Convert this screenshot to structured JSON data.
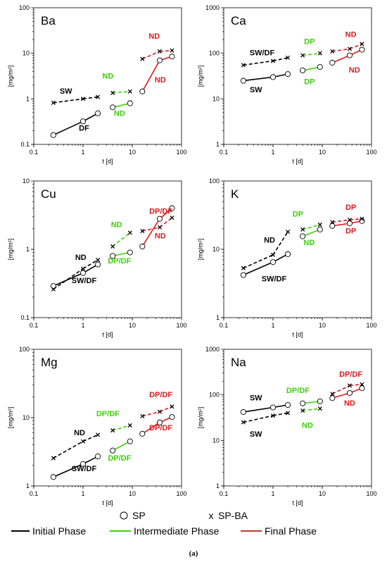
{
  "figure": {
    "caption": "(a)"
  },
  "legend": {
    "sp_label": "SP",
    "spba_label": "SP-BA",
    "initial_label": "Initial Phase",
    "intermediate_label": "Intermediate Phase",
    "final_label": "Final Phase"
  },
  "colors": {
    "initial": "#000000",
    "intermediate": "#3ecf0c",
    "final": "#e0191b",
    "sp_marker_fill": "#ffffff"
  },
  "chart_data": [
    {
      "type": "line",
      "element": "Ba",
      "xscale": "log",
      "yscale": "log",
      "xlabel": "t [d]",
      "ylabel": "[mg/m²]",
      "xlim": [
        0.1,
        100
      ],
      "ylim": [
        0.1,
        100
      ],
      "x_ticks": [
        "0.1",
        "1",
        "10",
        "100"
      ],
      "y_ticks": [
        "0.1",
        "1",
        "10",
        "100"
      ],
      "x": [
        0.25,
        1,
        2,
        4,
        9,
        16,
        36,
        64
      ],
      "series": [
        {
          "name": "SP",
          "values": [
            0.16,
            0.32,
            0.48,
            0.65,
            0.8,
            1.45,
            7,
            8.5
          ],
          "phases": [
            0,
            0,
            0,
            1,
            1,
            2,
            2,
            2
          ]
        },
        {
          "name": "SP-BA",
          "values": [
            0.82,
            1.0,
            1.1,
            1.35,
            1.45,
            7.5,
            11,
            11.5
          ],
          "phases": [
            0,
            0,
            0,
            1,
            1,
            2,
            2,
            2
          ]
        }
      ],
      "annotations": [
        {
          "text": "SW",
          "x": 0.45,
          "y": 1.3,
          "phase": 0
        },
        {
          "text": "DF",
          "x": 1.05,
          "y": 0.2,
          "phase": 0
        },
        {
          "text": "ND",
          "x": 3.2,
          "y": 2.8,
          "phase": 1
        },
        {
          "text": "ND",
          "x": 5.5,
          "y": 0.42,
          "phase": 1
        },
        {
          "text": "ND",
          "x": 28,
          "y": 21,
          "phase": 2
        },
        {
          "text": "ND",
          "x": 37,
          "y": 2.3,
          "phase": 2
        }
      ]
    },
    {
      "type": "line",
      "element": "Ca",
      "xscale": "log",
      "yscale": "log",
      "xlabel": "t [d]",
      "ylabel": "[mg/m²]",
      "xlim": [
        0.1,
        100
      ],
      "ylim": [
        1,
        1000
      ],
      "x_ticks": [
        "0.1",
        "1",
        "10",
        "100"
      ],
      "y_ticks": [
        "1",
        "10",
        "100",
        "1000"
      ],
      "x": [
        0.25,
        1,
        2,
        4,
        9,
        16,
        36,
        64
      ],
      "series": [
        {
          "name": "SP",
          "values": [
            25,
            30,
            35,
            42,
            50,
            62,
            90,
            120
          ],
          "phases": [
            0,
            0,
            0,
            1,
            1,
            2,
            2,
            2
          ]
        },
        {
          "name": "SP-BA",
          "values": [
            55,
            68,
            80,
            90,
            100,
            110,
            125,
            160
          ],
          "phases": [
            0,
            0,
            0,
            1,
            1,
            2,
            2,
            2
          ]
        }
      ],
      "annotations": [
        {
          "text": "SW/DF",
          "x": 0.6,
          "y": 90,
          "phase": 0
        },
        {
          "text": "SW",
          "x": 0.45,
          "y": 14,
          "phase": 0
        },
        {
          "text": "DP",
          "x": 5.5,
          "y": 160,
          "phase": 1
        },
        {
          "text": "DP",
          "x": 5.5,
          "y": 21,
          "phase": 1
        },
        {
          "text": "ND",
          "x": 38,
          "y": 230,
          "phase": 2
        },
        {
          "text": "ND",
          "x": 45,
          "y": 38,
          "phase": 2
        }
      ]
    },
    {
      "type": "line",
      "element": "Cu",
      "xscale": "log",
      "yscale": "log",
      "xlabel": "t [d]",
      "ylabel": "[mg/m²]",
      "xlim": [
        0.1,
        100
      ],
      "ylim": [
        0.1,
        10
      ],
      "x_ticks": [
        "0.1",
        "1",
        "10",
        "100"
      ],
      "y_ticks": [
        "0.1",
        "1",
        "10"
      ],
      "x": [
        0.25,
        1,
        2,
        4,
        9,
        16,
        36,
        64
      ],
      "series": [
        {
          "name": "SP",
          "values": [
            0.29,
            0.45,
            0.6,
            0.8,
            0.9,
            1.1,
            2.8,
            4.0
          ],
          "phases": [
            0,
            0,
            0,
            1,
            1,
            2,
            2,
            2
          ]
        },
        {
          "name": "SP-BA",
          "values": [
            0.26,
            0.52,
            0.7,
            1.1,
            1.75,
            1.85,
            2.1,
            2.9
          ],
          "phases": [
            0,
            0,
            0,
            1,
            1,
            2,
            2,
            2
          ]
        }
      ],
      "annotations": [
        {
          "text": "ND",
          "x": 0.9,
          "y": 0.7,
          "phase": 0
        },
        {
          "text": "SW/DF",
          "x": 1.05,
          "y": 0.32,
          "phase": 0
        },
        {
          "text": "ND",
          "x": 4.8,
          "y": 2.1,
          "phase": 1
        },
        {
          "text": "DP/DF",
          "x": 5.5,
          "y": 0.62,
          "phase": 1
        },
        {
          "text": "DP/DF",
          "x": 38,
          "y": 3.3,
          "phase": 2
        },
        {
          "text": "ND",
          "x": 37,
          "y": 1.45,
          "phase": 2
        }
      ]
    },
    {
      "type": "line",
      "element": "K",
      "xscale": "log",
      "yscale": "log",
      "xlabel": "t [d]",
      "ylabel": "[mg/m²]",
      "xlim": [
        0.1,
        100
      ],
      "ylim": [
        1,
        100
      ],
      "x_ticks": [
        "0.1",
        "1",
        "10",
        "100"
      ],
      "y_ticks": [
        "1",
        "10",
        "100"
      ],
      "x": [
        0.25,
        1,
        2,
        4,
        9,
        16,
        36,
        64
      ],
      "series": [
        {
          "name": "SP",
          "values": [
            4.2,
            6.5,
            8.5,
            15.5,
            19.5,
            22,
            24,
            26
          ],
          "phases": [
            0,
            0,
            0,
            1,
            1,
            2,
            2,
            2
          ]
        },
        {
          "name": "SP-BA",
          "values": [
            5.3,
            8.3,
            18,
            19.5,
            23,
            25,
            27,
            28
          ],
          "phases": [
            0,
            0,
            0,
            1,
            1,
            2,
            2,
            2
          ]
        }
      ],
      "annotations": [
        {
          "text": "ND",
          "x": 0.85,
          "y": 12.5,
          "phase": 0
        },
        {
          "text": "SW/DF",
          "x": 1.05,
          "y": 3.4,
          "phase": 0
        },
        {
          "text": "DP",
          "x": 3.2,
          "y": 30,
          "phase": 1
        },
        {
          "text": "ND",
          "x": 5.4,
          "y": 11.5,
          "phase": 1
        },
        {
          "text": "DP",
          "x": 38,
          "y": 38,
          "phase": 2
        },
        {
          "text": "DP",
          "x": 38,
          "y": 17,
          "phase": 2
        }
      ]
    },
    {
      "type": "line",
      "element": "Mg",
      "xscale": "log",
      "yscale": "log",
      "xlabel": "t [d]",
      "ylabel": "[mg/m²]",
      "xlim": [
        0.1,
        100
      ],
      "ylim": [
        1,
        100
      ],
      "x_ticks": [
        "0.1",
        "1",
        "10",
        "100"
      ],
      "y_ticks": [
        "1",
        "10",
        "100"
      ],
      "x": [
        0.25,
        1,
        2,
        4,
        9,
        16,
        36,
        64
      ],
      "series": [
        {
          "name": "SP",
          "values": [
            1.35,
            2.1,
            2.7,
            3.3,
            4.5,
            5.8,
            8.5,
            10.2
          ],
          "phases": [
            0,
            0,
            0,
            1,
            1,
            2,
            2,
            2
          ]
        },
        {
          "name": "SP-BA",
          "values": [
            2.55,
            4.5,
            5.6,
            6.5,
            7.7,
            10.5,
            12.2,
            14.5
          ],
          "phases": [
            0,
            0,
            0,
            1,
            1,
            2,
            2,
            2
          ]
        }
      ],
      "annotations": [
        {
          "text": "ND",
          "x": 0.85,
          "y": 5.5,
          "phase": 0
        },
        {
          "text": "SW/DF",
          "x": 1.05,
          "y": 1.65,
          "phase": 0
        },
        {
          "text": "DP/DF",
          "x": 3.2,
          "y": 10.5,
          "phase": 1
        },
        {
          "text": "DP/DF",
          "x": 5.5,
          "y": 2.35,
          "phase": 1
        },
        {
          "text": "DP/DF",
          "x": 38,
          "y": 20,
          "phase": 2
        },
        {
          "text": "DP/DF",
          "x": 38,
          "y": 6.5,
          "phase": 2
        }
      ]
    },
    {
      "type": "line",
      "element": "Na",
      "xscale": "log",
      "yscale": "log",
      "xlabel": "t [d]",
      "ylabel": "[mg/m²]",
      "xlim": [
        0.1,
        100
      ],
      "ylim": [
        1,
        1000
      ],
      "x_ticks": [
        "0.1",
        "1",
        "10",
        "100"
      ],
      "y_ticks": [
        "1",
        "10",
        "100",
        "1000"
      ],
      "x": [
        0.25,
        1,
        2,
        4,
        9,
        16,
        36,
        64
      ],
      "series": [
        {
          "name": "SP",
          "values": [
            42,
            53,
            60,
            65,
            72,
            85,
            110,
            140
          ],
          "phases": [
            0,
            0,
            0,
            1,
            1,
            2,
            2,
            2
          ]
        },
        {
          "name": "SP-BA",
          "values": [
            25,
            35,
            40,
            45,
            50,
            105,
            160,
            170
          ],
          "phases": [
            0,
            0,
            0,
            1,
            1,
            2,
            2,
            2
          ]
        }
      ],
      "annotations": [
        {
          "text": "SW",
          "x": 0.45,
          "y": 75,
          "phase": 0
        },
        {
          "text": "SW",
          "x": 0.45,
          "y": 12,
          "phase": 0
        },
        {
          "text": "DP/DF",
          "x": 3.2,
          "y": 110,
          "phase": 1
        },
        {
          "text": "ND",
          "x": 5.0,
          "y": 19,
          "phase": 1
        },
        {
          "text": "DP/DF",
          "x": 38,
          "y": 250,
          "phase": 2
        },
        {
          "text": "ND",
          "x": 36,
          "y": 58,
          "phase": 2
        }
      ]
    }
  ]
}
